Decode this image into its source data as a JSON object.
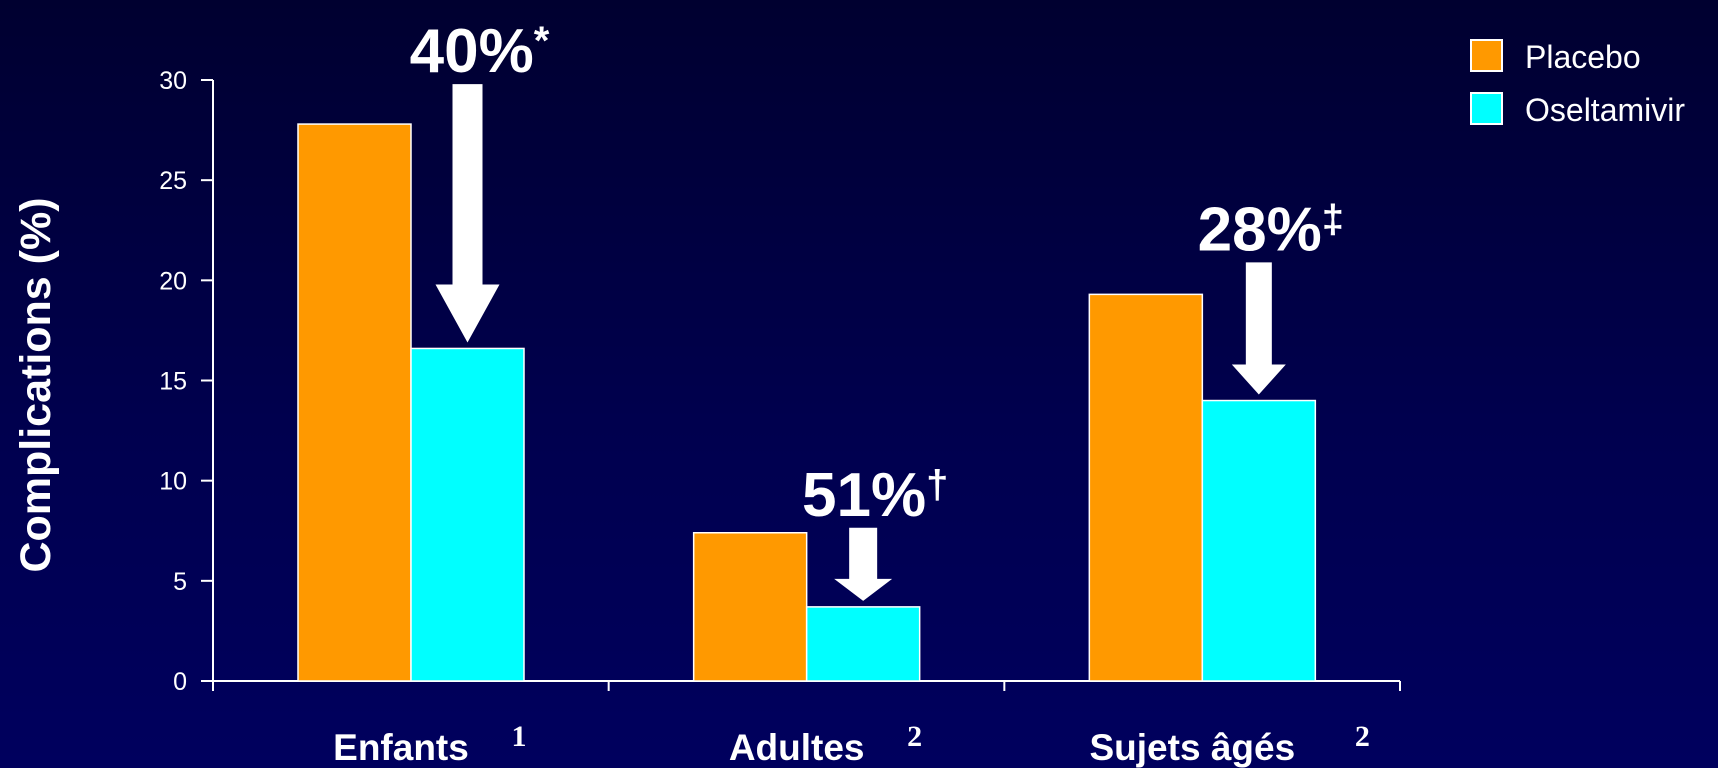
{
  "chart_data": {
    "type": "bar",
    "title": "",
    "xlabel": "",
    "ylabel": "Complications (%)",
    "ylim": [
      0,
      30
    ],
    "yticks": [
      0,
      5,
      10,
      15,
      20,
      25,
      30
    ],
    "grid": false,
    "legend_position": "top-right",
    "categories": [
      {
        "label": "Enfants",
        "superscript": "1"
      },
      {
        "label": "Adultes",
        "superscript": "2"
      },
      {
        "label": "Sujets âgés",
        "superscript": "2"
      }
    ],
    "series": [
      {
        "name": "Placebo",
        "color": "#FF9900",
        "values": [
          27.8,
          7.4,
          19.3
        ]
      },
      {
        "name": "Oseltamivir",
        "color": "#00FFFF",
        "values": [
          16.6,
          3.7,
          14.0
        ]
      }
    ],
    "annotations": [
      {
        "category_index": 0,
        "text": "40%",
        "symbol": "*"
      },
      {
        "category_index": 1,
        "text": "51%",
        "symbol": "†"
      },
      {
        "category_index": 2,
        "text": "28%",
        "symbol": "‡"
      }
    ]
  }
}
